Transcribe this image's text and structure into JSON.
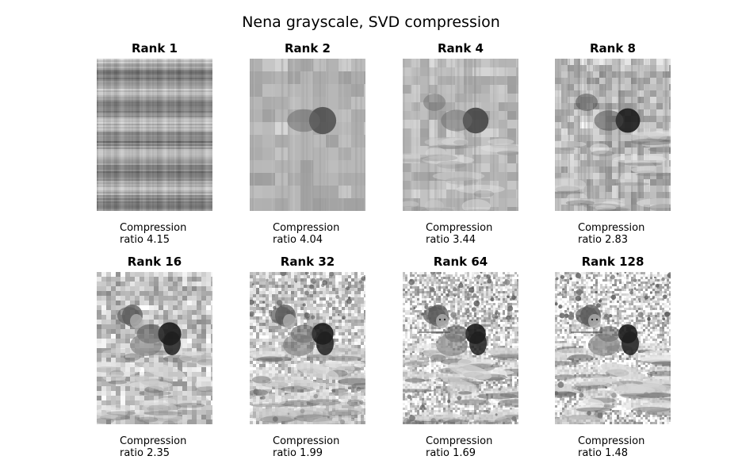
{
  "figure": {
    "title": "Nena grayscale, SVD compression"
  },
  "panels": [
    {
      "title": "Rank 1",
      "caption_line1": "Compression",
      "caption_line2": "ratio 4.15",
      "rank": 1
    },
    {
      "title": "Rank 2",
      "caption_line1": "Compression",
      "caption_line2": "ratio 4.04",
      "rank": 2
    },
    {
      "title": "Rank 4",
      "caption_line1": "Compression",
      "caption_line2": "ratio 3.44",
      "rank": 4
    },
    {
      "title": "Rank 8",
      "caption_line1": "Compression",
      "caption_line2": "ratio 2.83",
      "rank": 8
    },
    {
      "title": "Rank 16",
      "caption_line1": "Compression",
      "caption_line2": "ratio 2.35",
      "rank": 16
    },
    {
      "title": "Rank 32",
      "caption_line1": "Compression",
      "caption_line2": "ratio 1.99",
      "rank": 32
    },
    {
      "title": "Rank 64",
      "caption_line1": "Compression",
      "caption_line2": "ratio 1.69",
      "rank": 64
    },
    {
      "title": "Rank 128",
      "caption_line1": "Compression",
      "caption_line2": "ratio 1.48",
      "rank": 128
    }
  ]
}
